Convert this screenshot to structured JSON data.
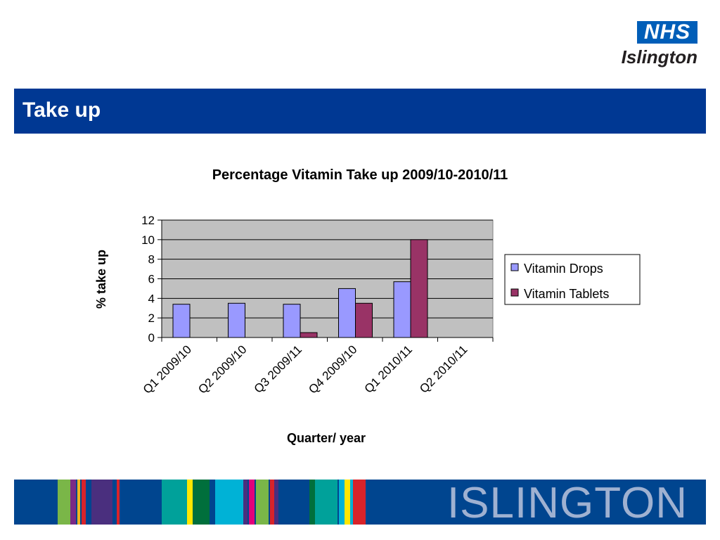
{
  "logo": {
    "brand": "NHS",
    "place": "Islington"
  },
  "header": {
    "title": "Take up"
  },
  "chart_data": {
    "type": "bar",
    "title": "Percentage Vitamin Take up 2009/10-2010/11",
    "xlabel": "Quarter/ year",
    "ylabel": "% take up",
    "ylim": [
      0,
      12
    ],
    "yticks": [
      0,
      2,
      4,
      6,
      8,
      10,
      12
    ],
    "grid": true,
    "legend_position": "right",
    "categories": [
      "Q1 2009/10",
      "Q2 2009/10",
      "Q3 2009/11",
      "Q4 2009/10",
      "Q1 2010/11",
      "Q2 2010/11"
    ],
    "series": [
      {
        "name": "Vitamin Drops",
        "color": "#9999FF",
        "values": [
          3.4,
          3.5,
          3.4,
          5.0,
          5.7,
          null
        ]
      },
      {
        "name": "Vitamin Tablets",
        "color": "#993366",
        "values": [
          null,
          null,
          0.5,
          3.5,
          10.0,
          null
        ]
      }
    ],
    "plot_background": "#C0C0C0"
  },
  "footer": {
    "word": "ISLINGTON",
    "stripe_colors": [
      "#7ab648",
      "#7a2a86",
      "#f0b323",
      "#d8232a",
      "#4a2f7e",
      "#00a19a",
      "#ffe600",
      "#006f3c",
      "#00b2d6",
      "#e2007a"
    ]
  }
}
